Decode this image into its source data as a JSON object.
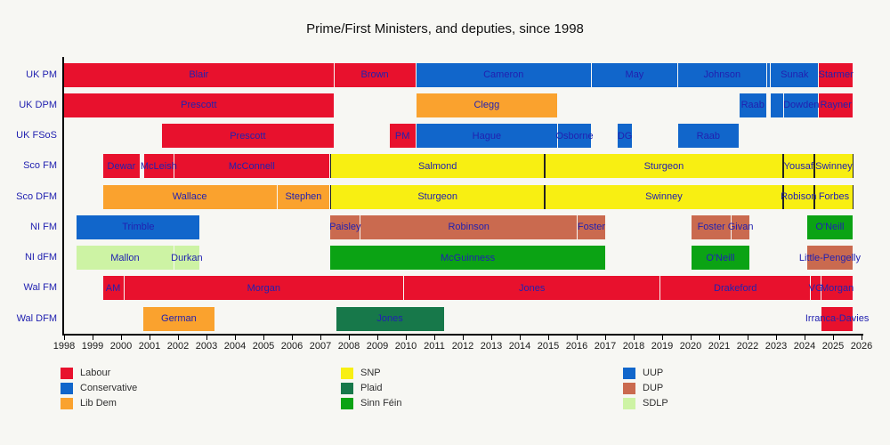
{
  "chart_data": {
    "type": "bar",
    "variant": "horizontal-timeline-gantt",
    "title": "Prime/First Ministers, and deputies, since 1998",
    "x_axis": {
      "min": 1998,
      "max": 2026,
      "tick_years": [
        "1998",
        "1999",
        "2000",
        "2001",
        "2002",
        "2003",
        "2004",
        "2005",
        "2006",
        "2007",
        "2008",
        "2009",
        "2010",
        "2011",
        "2012",
        "2013",
        "2014",
        "2015",
        "2016",
        "2017",
        "2018",
        "2019",
        "2020",
        "2021",
        "2022",
        "2023",
        "2024",
        "2025",
        "2026"
      ]
    },
    "party_colors": {
      "Labour": "#e8112d",
      "Conservative": "#1166cb",
      "Lib Dem": "#faa22e",
      "SNP": "#f8ef12",
      "Plaid": "#17784a",
      "Sinn Féin": "#0ba314",
      "UUP": "#1166cb",
      "DUP": "#ca6a4f",
      "SDLP": "#cdf3a4"
    },
    "text_color": "#2121b0",
    "rows": [
      {
        "label": "UK PM",
        "segments": [
          {
            "label": "Blair",
            "party": "Labour",
            "start": 1998.0,
            "end": 2007.49
          },
          {
            "label": "Brown",
            "party": "Labour",
            "start": 2007.49,
            "end": 2010.36
          },
          {
            "label": "Cameron",
            "party": "Conservative",
            "start": 2010.36,
            "end": 2016.53
          },
          {
            "label": "May",
            "party": "Conservative",
            "start": 2016.53,
            "end": 2019.56
          },
          {
            "label": "Johnson",
            "party": "Conservative",
            "start": 2019.56,
            "end": 2022.68
          },
          {
            "label": "",
            "party": "Conservative",
            "start": 2022.7,
            "end": 2022.82
          },
          {
            "label": "Sunak",
            "party": "Conservative",
            "start": 2022.82,
            "end": 2024.51
          },
          {
            "label": "Starmer",
            "party": "Labour",
            "start": 2024.51,
            "end": 2025.72
          }
        ]
      },
      {
        "label": "UK DPM",
        "segments": [
          {
            "label": "Prescott",
            "party": "Labour",
            "start": 1998.0,
            "end": 2007.49
          },
          {
            "label": "Clegg",
            "party": "Lib Dem",
            "start": 2010.36,
            "end": 2015.35
          },
          {
            "label": "Raab",
            "party": "Conservative",
            "start": 2021.71,
            "end": 2022.68
          },
          {
            "label": "",
            "party": "Conservative",
            "start": 2022.82,
            "end": 2023.29
          },
          {
            "label": "Dowden",
            "party": "Conservative",
            "start": 2023.29,
            "end": 2024.51
          },
          {
            "label": "Rayner",
            "party": "Labour",
            "start": 2024.51,
            "end": 2025.72
          }
        ]
      },
      {
        "label": "UK FSoS",
        "segments": [
          {
            "label": "Prescott",
            "party": "Labour",
            "start": 2001.44,
            "end": 2007.49
          },
          {
            "label": "PM",
            "party": "Labour",
            "start": 2009.43,
            "end": 2010.36
          },
          {
            "label": "Hague",
            "party": "Conservative",
            "start": 2010.36,
            "end": 2015.35
          },
          {
            "label": "Osborne",
            "party": "Conservative",
            "start": 2015.35,
            "end": 2016.53
          },
          {
            "label": "DG",
            "party": "Conservative",
            "start": 2017.44,
            "end": 2017.97
          },
          {
            "label": "Raab",
            "party": "Conservative",
            "start": 2019.56,
            "end": 2021.71
          }
        ]
      },
      {
        "label": "Sco FM",
        "segments": [
          {
            "label": "Dewar",
            "party": "Labour",
            "start": 1999.36,
            "end": 2000.7
          },
          {
            "label": "McLeish",
            "party": "Labour",
            "start": 2000.82,
            "end": 2001.86
          },
          {
            "label": "McConnell",
            "party": "Labour",
            "start": 2001.86,
            "end": 2007.35
          },
          {
            "label": "Salmond",
            "party": "SNP",
            "start": 2007.35,
            "end": 2014.88
          },
          {
            "label": "Sturgeon",
            "party": "SNP",
            "start": 2014.88,
            "end": 2023.24
          },
          {
            "label": "Yousaf",
            "party": "SNP",
            "start": 2023.24,
            "end": 2024.34
          },
          {
            "label": "Swinney",
            "party": "SNP",
            "start": 2024.34,
            "end": 2025.72
          }
        ]
      },
      {
        "label": "Sco DFM",
        "segments": [
          {
            "label": "Wallace",
            "party": "Lib Dem",
            "start": 1999.36,
            "end": 2005.49
          },
          {
            "label": "Stephen",
            "party": "Lib Dem",
            "start": 2005.49,
            "end": 2007.35
          },
          {
            "label": "Sturgeon",
            "party": "SNP",
            "start": 2007.35,
            "end": 2014.88
          },
          {
            "label": "Swinney",
            "party": "SNP",
            "start": 2014.88,
            "end": 2023.24
          },
          {
            "label": "Robison",
            "party": "SNP",
            "start": 2023.24,
            "end": 2024.34
          },
          {
            "label": "Forbes",
            "party": "SNP",
            "start": 2024.34,
            "end": 2025.72
          }
        ]
      },
      {
        "label": "NI FM",
        "segments": [
          {
            "label": "Trimble",
            "party": "UUP",
            "start": 1998.45,
            "end": 2002.79
          },
          {
            "label": "Paisley",
            "party": "DUP",
            "start": 2007.35,
            "end": 2008.42
          },
          {
            "label": "Robinson",
            "party": "DUP",
            "start": 2008.42,
            "end": 2016.03
          },
          {
            "label": "Foster",
            "party": "DUP",
            "start": 2016.03,
            "end": 2017.03
          },
          {
            "label": "Foster",
            "party": "DUP",
            "start": 2020.03,
            "end": 2021.45
          },
          {
            "label": "Givan",
            "party": "DUP",
            "start": 2021.45,
            "end": 2022.09
          },
          {
            "label": "O'Neill",
            "party": "Sinn Féin",
            "start": 2024.09,
            "end": 2025.72
          }
        ]
      },
      {
        "label": "NI dFM",
        "segments": [
          {
            "label": "Mallon",
            "party": "SDLP",
            "start": 1998.45,
            "end": 2001.86
          },
          {
            "label": "Durkan",
            "party": "SDLP",
            "start": 2001.86,
            "end": 2002.79
          },
          {
            "label": "McGuinness",
            "party": "Sinn Féin",
            "start": 2007.35,
            "end": 2017.03
          },
          {
            "label": "O'Neill",
            "party": "Sinn Féin",
            "start": 2020.03,
            "end": 2022.09
          },
          {
            "label": "Little-Pengelly",
            "party": "DUP",
            "start": 2024.09,
            "end": 2025.72
          }
        ]
      },
      {
        "label": "Wal FM",
        "segments": [
          {
            "label": "AM",
            "party": "Labour",
            "start": 1999.36,
            "end": 2000.11
          },
          {
            "label": "Morgan",
            "party": "Labour",
            "start": 2000.11,
            "end": 2009.94
          },
          {
            "label": "Jones",
            "party": "Labour",
            "start": 2009.94,
            "end": 2018.95
          },
          {
            "label": "Drakeford",
            "party": "Labour",
            "start": 2018.95,
            "end": 2024.22
          },
          {
            "label": "VG",
            "party": "Labour",
            "start": 2024.22,
            "end": 2024.6
          },
          {
            "label": "Morgan",
            "party": "Labour",
            "start": 2024.6,
            "end": 2025.72
          }
        ]
      },
      {
        "label": "Wal DFM",
        "segments": [
          {
            "label": "German",
            "party": "Lib Dem",
            "start": 2000.79,
            "end": 2003.3
          },
          {
            "label": "Jones",
            "party": "Plaid",
            "start": 2007.55,
            "end": 2011.36
          },
          {
            "label": "Irranca-Davies",
            "party": "Labour",
            "start": 2024.6,
            "end": 2025.72
          }
        ]
      }
    ],
    "legend_columns": [
      [
        {
          "label": "Labour",
          "color": "#e8112d"
        },
        {
          "label": "Conservative",
          "color": "#1166cb"
        },
        {
          "label": "Lib Dem",
          "color": "#faa22e"
        }
      ],
      [
        {
          "label": "SNP",
          "color": "#f8ef12"
        },
        {
          "label": "Plaid",
          "color": "#17784a"
        },
        {
          "label": "Sinn Féin",
          "color": "#0ba314"
        }
      ],
      [
        {
          "label": "UUP",
          "color": "#1166cb"
        },
        {
          "label": "DUP",
          "color": "#ca6a4f"
        },
        {
          "label": "SDLP",
          "color": "#cdf3a4"
        }
      ]
    ]
  }
}
